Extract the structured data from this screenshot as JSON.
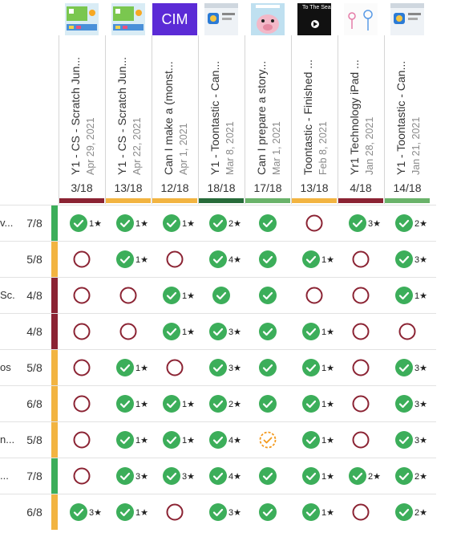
{
  "colors": {
    "green": "#3cae5a",
    "dark_green": "#276b3a",
    "light_green": "#6ab36a",
    "yellow": "#f2b441",
    "red": "#8b2333",
    "orange": "#f39a1e"
  },
  "columns": [
    {
      "title": "Y1 - CS - Scratch Jun...",
      "date": "Apr 29, 2021",
      "score": "3/18",
      "bar": "red",
      "thumb": "scratch-thumb"
    },
    {
      "title": "Y1 - CS - Scratch Jun...",
      "date": "Apr 22, 2021",
      "score": "13/18",
      "bar": "yellow",
      "thumb": "scratch-thumb"
    },
    {
      "title": "Can I make a (monst...",
      "date": "Apr 1, 2021",
      "score": "12/18",
      "bar": "yellow",
      "thumb": "cim-thumb",
      "thumb_text": "CIM"
    },
    {
      "title": "Y1 - Toontastic - Can...",
      "date": "Mar 8, 2021",
      "score": "18/18",
      "bar": "dark_green",
      "thumb": "app-thumb"
    },
    {
      "title": "Can I prepare a story...",
      "date": "Mar 1, 2021",
      "score": "17/18",
      "bar": "light_green",
      "thumb": "pig-thumb"
    },
    {
      "title": "Toontastic - Finished ...",
      "date": "Feb 8, 2021",
      "score": "13/18",
      "bar": "yellow",
      "thumb": "video-thumb",
      "thumb_text": "To The Sea"
    },
    {
      "title": "Yr1 Technology iPad ...",
      "date": "Jan 28, 2021",
      "score": "4/18",
      "bar": "red",
      "thumb": "drawing-thumb"
    },
    {
      "title": "Y1 - Toontastic - Can...",
      "date": "Jan 21, 2021",
      "score": "14/18",
      "bar": "light_green",
      "thumb": "app-thumb"
    }
  ],
  "rows": [
    {
      "name": "v...",
      "score": "7/8",
      "bar": "green",
      "cells": [
        [
          "c",
          "1★"
        ],
        [
          "c",
          "1★"
        ],
        [
          "c",
          "1★"
        ],
        [
          "c",
          "2★"
        ],
        [
          "c",
          ""
        ],
        [
          "o",
          ""
        ],
        [
          "c",
          "3★"
        ],
        [
          "c",
          "2★"
        ]
      ]
    },
    {
      "name": "",
      "score": "5/8",
      "bar": "yellow",
      "cells": [
        [
          "o",
          ""
        ],
        [
          "c",
          "1★"
        ],
        [
          "o",
          ""
        ],
        [
          "c",
          "4★"
        ],
        [
          "c",
          ""
        ],
        [
          "c",
          "1★"
        ],
        [
          "o",
          ""
        ],
        [
          "c",
          "3★"
        ]
      ]
    },
    {
      "name": "Sc...",
      "score": "4/8",
      "bar": "red",
      "cells": [
        [
          "o",
          ""
        ],
        [
          "o",
          ""
        ],
        [
          "c",
          "1★"
        ],
        [
          "c",
          ""
        ],
        [
          "c",
          ""
        ],
        [
          "o",
          ""
        ],
        [
          "o",
          ""
        ],
        [
          "c",
          "1★"
        ]
      ]
    },
    {
      "name": "",
      "score": "4/8",
      "bar": "red",
      "cells": [
        [
          "o",
          ""
        ],
        [
          "o",
          ""
        ],
        [
          "c",
          "1★"
        ],
        [
          "c",
          "3★"
        ],
        [
          "c",
          ""
        ],
        [
          "c",
          "1★"
        ],
        [
          "o",
          ""
        ],
        [
          "o",
          ""
        ]
      ]
    },
    {
      "name": "os",
      "score": "5/8",
      "bar": "yellow",
      "cells": [
        [
          "o",
          ""
        ],
        [
          "c",
          "1★"
        ],
        [
          "o",
          ""
        ],
        [
          "c",
          "3★"
        ],
        [
          "c",
          ""
        ],
        [
          "c",
          "1★"
        ],
        [
          "o",
          ""
        ],
        [
          "c",
          "3★"
        ]
      ]
    },
    {
      "name": "",
      "score": "6/8",
      "bar": "yellow",
      "cells": [
        [
          "o",
          ""
        ],
        [
          "c",
          "1★"
        ],
        [
          "c",
          "1★"
        ],
        [
          "c",
          "2★"
        ],
        [
          "c",
          ""
        ],
        [
          "c",
          "1★"
        ],
        [
          "o",
          ""
        ],
        [
          "c",
          "3★"
        ]
      ]
    },
    {
      "name": "n...",
      "score": "5/8",
      "bar": "yellow",
      "cells": [
        [
          "o",
          ""
        ],
        [
          "c",
          "1★"
        ],
        [
          "c",
          "1★"
        ],
        [
          "c",
          "4★"
        ],
        [
          "p",
          ""
        ],
        [
          "c",
          "1★"
        ],
        [
          "o",
          ""
        ],
        [
          "c",
          "3★"
        ]
      ]
    },
    {
      "name": "...",
      "score": "7/8",
      "bar": "green",
      "cells": [
        [
          "o",
          ""
        ],
        [
          "c",
          "3★"
        ],
        [
          "c",
          "3★"
        ],
        [
          "c",
          "4★"
        ],
        [
          "c",
          ""
        ],
        [
          "c",
          "1★"
        ],
        [
          "c",
          "2★"
        ],
        [
          "c",
          "2★"
        ]
      ]
    },
    {
      "name": "",
      "score": "6/8",
      "bar": "yellow",
      "cells": [
        [
          "c",
          "3★"
        ],
        [
          "c",
          "1★"
        ],
        [
          "o",
          ""
        ],
        [
          "c",
          "3★"
        ],
        [
          "c",
          ""
        ],
        [
          "c",
          "1★"
        ],
        [
          "o",
          ""
        ],
        [
          "c",
          "2★"
        ]
      ]
    }
  ]
}
